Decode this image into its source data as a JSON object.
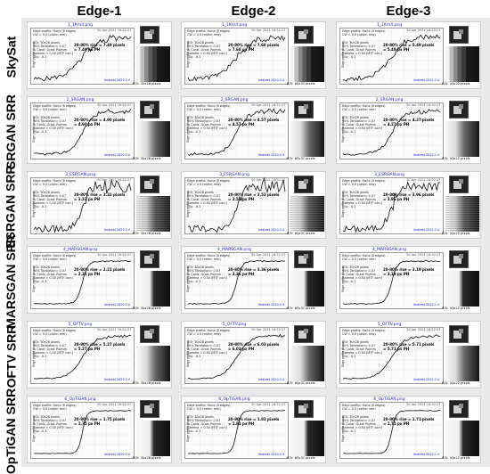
{
  "columns": [
    "Edge-1",
    "Edge-2",
    "Edge-3"
  ],
  "rows": [
    {
      "label": "SkySat",
      "files": [
        "1_1Km4.png",
        "1_1Km4.png",
        "1_1Km4.png"
      ],
      "rise": [
        "20-80% rise = 7.49 pixels\n= 7.49 px PH",
        "20-80% rise = 7.68 pixels\n= 7.68 px PH",
        "20-80% rise = 5.49 pixels\n= 5.49 px PH"
      ],
      "roi": [
        "ROI: 30x28 pixels",
        "ROI: 60x31 pixels",
        "ROI: 43x22 pixels"
      ],
      "roi_style": "bars"
    },
    {
      "label": "SRGAN SRR",
      "files": [
        "2_SRGAN.png",
        "2_SRGAN.png",
        "2_SRGAN.png"
      ],
      "rise": [
        "20-80% rise = 4.90 pixels\n= 4.90 px PH",
        "20-80% rise = 4.57 pixels\n= 4.57 px PH",
        "20-80% rise = 4.27 pixels\n= 4.27 px PH"
      ],
      "roi": [
        "ROI: 30x28 pixels",
        "ROI: 60x31 pixels",
        "ROI: 43x22 pixels"
      ],
      "roi_style": "smooth"
    },
    {
      "label": "ESRGAN SRR",
      "files": [
        "3_ESRGAN.png",
        "3_ESRGAN.png",
        "3_ESRGAN.png"
      ],
      "rise": [
        "20-80% rise = 3.33 pixels\n= 3.33 px PH",
        "20-80% rise = 3.53 pixels\n= 3.53 px PH",
        "20-80% rise = 3.96 pixels\n= 3.96 px PH"
      ],
      "roi": [
        "ROI: 30x28 pixels",
        "ROI: 60x31 pixels",
        "ROI: 43x22 pixels"
      ],
      "roi_style": "noisy"
    },
    {
      "label": "MARSGAN SRR",
      "files": [
        "4_MARSGAN.png",
        "4_MARSGAN.png",
        "4_MARSGAN.png"
      ],
      "rise": [
        "20-80% rise = 2.21 pixels\n= 2.21 px PH",
        "20-80% rise = 3.36 pixels\n= 3.36 px PH",
        "20-80% rise = 3.19 pixels\n= 3.19 px PH"
      ],
      "roi": [
        "ROI: 30x28 pixels",
        "ROI: 60x31 pixels",
        "ROI: 43x22 pixels"
      ],
      "roi_style": "sharp"
    },
    {
      "label": "OFTV SRR",
      "files": [
        "5_OFTV.png",
        "5_OFTV.png",
        "5_OFTV.png"
      ],
      "rise": [
        "20-80% rise = 5.27 pixels\n= 5.27 px PH",
        "20-80% rise = 6.03 pixels\n= 6.03 px PH",
        "20-80% rise = 5.71 pixels\n= 5.71 px PH"
      ],
      "roi": [
        "ROI: 30x28 pixels",
        "ROI: 60x31 pixels",
        "ROI: 43x22 pixels"
      ],
      "roi_style": "smooth"
    },
    {
      "label": "OpTiGAN SRR",
      "files": [
        "6_OpTiGAN.png",
        "6_OpTiGAN.png",
        "6_OpTiGAN.png"
      ],
      "rise": [
        "20-80% rise = 1.75 pixels\n= 1.75 px PH",
        "20-80% rise = 1.83 pixels\n= 1.83 px PH",
        "20-80% rise = 1.71 pixels\n= 1.71 px PH"
      ],
      "roi": [
        "ROI: 30x28 pixels",
        "ROI: 60x31 pixels",
        "ROI: 43x22 pixels"
      ],
      "roi_style": "sharp"
    }
  ],
  "common": {
    "plot_title": "Edge profile: Horiz (6 edges)",
    "info": "Edge profile: Horiz (6 edges)\nCW = 0.0 (calibr. mm)\n\nROI: 30x28 pixels\n90% Tanslation= 0.07\nIt. Contr. Grad: Px/mm\nGamma = 0.50 (MTF corr.)\nClip: -0.1",
    "ylabel": "Edge profile (linear)",
    "tool": "Imatest 2020.2.4",
    "date": "30 Apr 2021 16:52:27"
  }
}
